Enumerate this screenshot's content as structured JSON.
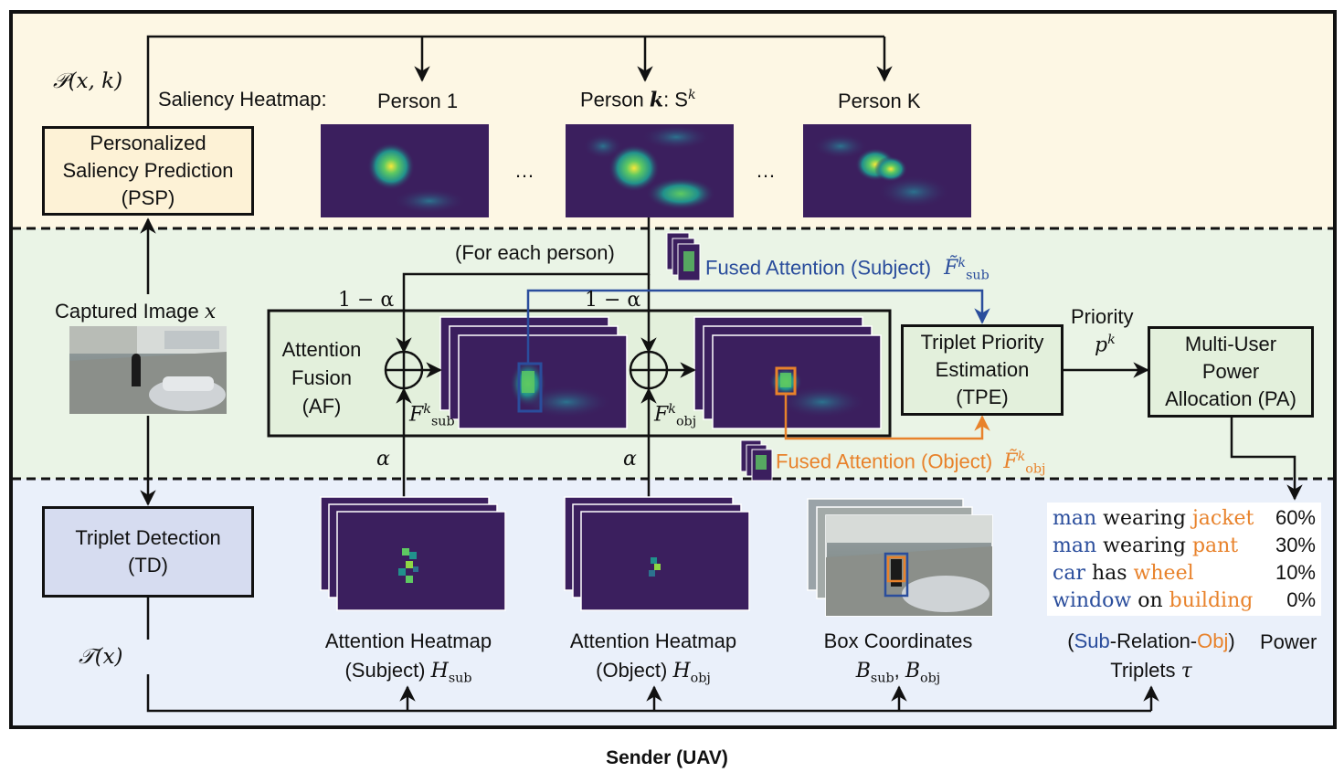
{
  "colors": {
    "top_band": "#fdf7e4",
    "mid_band": "#eaf4e6",
    "bottom_band": "#eaf0fa",
    "psp_fill": "#fdf2d6",
    "af_fill": "#e3f0dc",
    "tpe_fill": "#e3f0dc",
    "pa_fill": "#e3f0dc",
    "td_fill": "#d6dcf0",
    "subject_blue": "#2a4d9c",
    "object_orange": "#e8822b",
    "heatmap_bg": "#3b1f5e"
  },
  "labels": {
    "p_func": "𝒫(x, k)",
    "saliency_heatmap": "Saliency Heatmap:",
    "person1": "Person 1",
    "personk_pre": "Person ",
    "personk_k": "k",
    "personk_post": ": S",
    "personk_sup": "k",
    "personK": "Person K",
    "dots1": "…",
    "dots2": "…",
    "psp_line1": "Personalized",
    "psp_line2": "Saliency Prediction",
    "psp_line3": "(PSP)",
    "for_each": "(For each person)",
    "fused_sub": "Fused Attention (Subject)",
    "fused_sub_sym": "F̃",
    "fused_sub_sup": "k",
    "fused_sub_sub": "sub",
    "captured_image": "Captured Image ",
    "captured_x": "x",
    "one_minus_alpha1": "1 − α",
    "one_minus_alpha2": "1 − α",
    "af_line1": "Attention",
    "af_line2": "Fusion",
    "af_line3": "(AF)",
    "f_sub_sym": "F",
    "f_sub_sup": "k",
    "f_sub_sub": "sub",
    "f_obj_sym": "F",
    "f_obj_sup": "k",
    "f_obj_sub": "obj",
    "tpe_line1": "Triplet Priority",
    "tpe_line2": "Estimation",
    "tpe_line3": "(TPE)",
    "priority": "Priority",
    "priority_p": "p",
    "priority_sup": "k",
    "pa_line1": "Multi-User",
    "pa_line2": "Power",
    "pa_line3": "Allocation (PA)",
    "alpha1": "α",
    "alpha2": "α",
    "fused_obj": "Fused Attention (Object)",
    "fused_obj_sym": "F̃",
    "fused_obj_sup": "k",
    "fused_obj_sub": "obj",
    "td_line1": "Triplet Detection",
    "td_line2": "(TD)",
    "t_func": "𝒯(x)",
    "ah_sub_line1": "Attention Heatmap",
    "ah_sub_line2": "(Subject) ",
    "ah_sub_H": "H",
    "ah_sub_sub": "sub",
    "ah_obj_line1": "Attention Heatmap",
    "ah_obj_line2": "(Object) ",
    "ah_obj_H": "H",
    "ah_obj_sub": "obj",
    "box_coords": "Box Coordinates",
    "box_B1": "B",
    "box_B1_sub": "sub",
    "box_sep": ", ",
    "box_B2": "B",
    "box_B2_sub": "obj",
    "trip_open": "(",
    "trip_sub": "Sub",
    "trip_rel": "-Relation-",
    "trip_obj": "Obj",
    "trip_close": ")",
    "triplets": "Triplets ",
    "triplets_tau": "τ",
    "power": "Power",
    "sender": "Sender (UAV)"
  },
  "triplets": [
    {
      "subject": "man",
      "relation": "wearing",
      "object": "jacket",
      "power": "60%"
    },
    {
      "subject": "man",
      "relation": "wearing",
      "object": "pant",
      "power": "30%"
    },
    {
      "subject": "car",
      "relation": "has",
      "object": "wheel",
      "power": "10%"
    },
    {
      "subject": "window",
      "relation": "on",
      "object": "building",
      "power": "0%"
    }
  ]
}
